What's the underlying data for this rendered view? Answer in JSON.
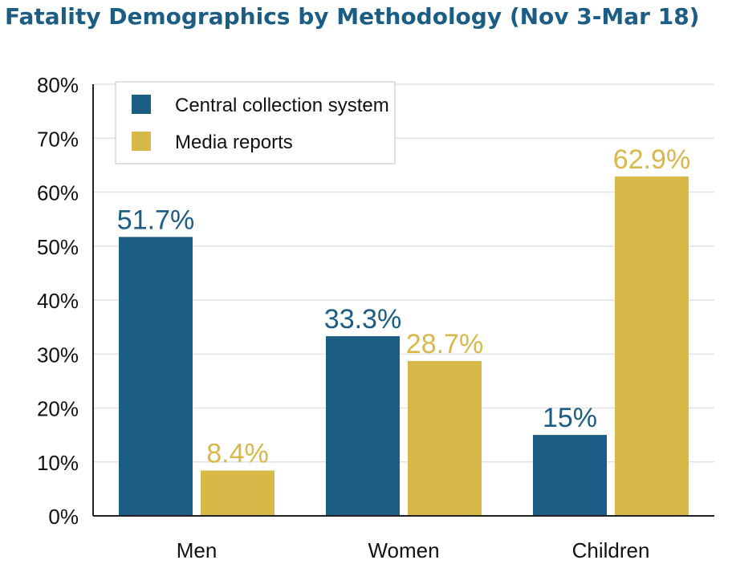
{
  "title": "Fatality Demographics by Methodology (Nov 3-Mar 18)",
  "colors": {
    "series1": "#1b5d84",
    "series2": "#d9b84a",
    "grid": "#e3e3e3",
    "axis": "#222222"
  },
  "chart_data": {
    "type": "bar",
    "categories": [
      "Men",
      "Women",
      "Children"
    ],
    "series": [
      {
        "name": "Central collection system",
        "values": [
          51.7,
          33.3,
          15
        ],
        "labels": [
          "51.7%",
          "33.3%",
          "15%"
        ]
      },
      {
        "name": "Media reports",
        "values": [
          8.4,
          28.7,
          62.9
        ],
        "labels": [
          "8.4%",
          "28.7%",
          "62.9%"
        ]
      }
    ],
    "yticks": [
      "0%",
      "10%",
      "20%",
      "30%",
      "40%",
      "50%",
      "60%",
      "70%",
      "80%"
    ],
    "ylim": [
      0,
      80
    ],
    "grid": true,
    "legend": "top-left"
  }
}
